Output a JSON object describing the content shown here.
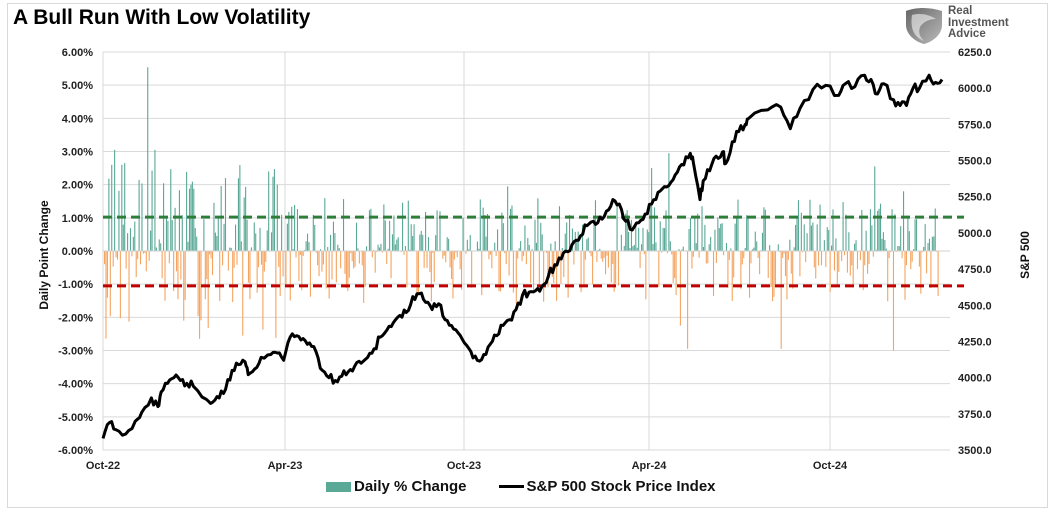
{
  "header": {
    "title": "A Bull Run With Low Volatility",
    "logo_lines": [
      "Real",
      "Investment",
      "Advice"
    ]
  },
  "colors": {
    "positive_bar": "#5aa896",
    "negative_bar": "#f4a460",
    "upper_avg_line": "#2e7d3a",
    "lower_avg_line": "#c00000",
    "price_line": "#000000",
    "grid": "#d9d9d9"
  },
  "chart_data": {
    "type": "bar+line",
    "title": "A Bull Run With Low Volatility",
    "xlabel": "",
    "ylabel_left": "Daily Point Change",
    "ylabel_right": "S&P 500",
    "x_ticks": [
      "Oct-22",
      "Apr-23",
      "Oct-23",
      "Apr-24",
      "Oct-24"
    ],
    "x_range": [
      "2022-10",
      "2025-01"
    ],
    "y_left_ticks": [
      "6.00%",
      "5.00%",
      "4.00%",
      "3.00%",
      "2.00%",
      "1.00%",
      "0.00%",
      "-1.00%",
      "-2.00%",
      "-3.00%",
      "-4.00%",
      "-5.00%",
      "-6.00%"
    ],
    "y_left_range": [
      -6,
      6
    ],
    "y_right_ticks": [
      "6250.0",
      "6000.0",
      "5750.0",
      "5500.0",
      "5250.0",
      "5000.0",
      "4750.0",
      "4500.0",
      "4250.0",
      "4000.0",
      "3750.0",
      "3500.0"
    ],
    "y_right_range": [
      3500,
      6250
    ],
    "grid": true,
    "legend_position": "bottom",
    "legend": [
      "Daily % Change",
      "S&P 500 Stock Price Index"
    ],
    "reference_lines": [
      {
        "name": "avg-positive-change",
        "value": 1.02,
        "axis": "left",
        "style": "dashed"
      },
      {
        "name": "avg-negative-change",
        "value": -1.05,
        "axis": "left",
        "style": "dashed"
      }
    ],
    "series": [
      {
        "name": "S&P 500 Stock Price Index",
        "axis": "right",
        "type": "line",
        "points": [
          [
            0,
            3580
          ],
          [
            0.01,
            3690
          ],
          [
            0.02,
            3640
          ],
          [
            0.035,
            3610
          ],
          [
            0.05,
            3700
          ],
          [
            0.06,
            3760
          ],
          [
            0.075,
            3860
          ],
          [
            0.085,
            3800
          ],
          [
            0.09,
            3900
          ],
          [
            0.1,
            3960
          ],
          [
            0.11,
            4000
          ],
          [
            0.12,
            3980
          ],
          [
            0.13,
            3960
          ],
          [
            0.14,
            3940
          ],
          [
            0.16,
            3850
          ],
          [
            0.17,
            3830
          ],
          [
            0.18,
            3860
          ],
          [
            0.19,
            3920
          ],
          [
            0.2,
            4050
          ],
          [
            0.21,
            4090
          ],
          [
            0.22,
            4110
          ],
          [
            0.225,
            4020
          ],
          [
            0.235,
            4060
          ],
          [
            0.245,
            4140
          ],
          [
            0.26,
            4160
          ],
          [
            0.27,
            4170
          ],
          [
            0.28,
            4120
          ],
          [
            0.29,
            4280
          ],
          [
            0.3,
            4290
          ],
          [
            0.31,
            4270
          ],
          [
            0.32,
            4240
          ],
          [
            0.33,
            4180
          ],
          [
            0.34,
            4050
          ],
          [
            0.35,
            4000
          ],
          [
            0.36,
            3980
          ],
          [
            0.37,
            4010
          ],
          [
            0.38,
            4040
          ],
          [
            0.39,
            4080
          ],
          [
            0.4,
            4100
          ],
          [
            0.41,
            4140
          ],
          [
            0.42,
            4200
          ],
          [
            0.43,
            4280
          ],
          [
            0.44,
            4330
          ],
          [
            0.45,
            4380
          ],
          [
            0.46,
            4430
          ],
          [
            0.47,
            4450
          ],
          [
            0.48,
            4560
          ],
          [
            0.49,
            4580
          ],
          [
            0.5,
            4520
          ],
          [
            0.51,
            4470
          ],
          [
            0.52,
            4510
          ],
          [
            0.53,
            4400
          ],
          [
            0.54,
            4360
          ],
          [
            0.55,
            4310
          ],
          [
            0.56,
            4240
          ],
          [
            0.57,
            4180
          ],
          [
            0.58,
            4120
          ],
          [
            0.59,
            4160
          ],
          [
            0.6,
            4230
          ],
          [
            0.61,
            4290
          ],
          [
            0.62,
            4360
          ],
          [
            0.63,
            4400
          ],
          [
            0.64,
            4470
          ],
          [
            0.65,
            4570
          ],
          [
            0.66,
            4590
          ],
          [
            0.67,
            4600
          ],
          [
            0.68,
            4630
          ],
          [
            0.69,
            4700
          ],
          [
            0.7,
            4780
          ],
          [
            0.71,
            4820
          ],
          [
            0.72,
            4870
          ],
          [
            0.73,
            4940
          ],
          [
            0.74,
            4980
          ],
          [
            0.75,
            5050
          ],
          [
            0.76,
            5080
          ],
          [
            0.77,
            5110
          ],
          [
            0.78,
            5150
          ],
          [
            0.79,
            5230
          ],
          [
            0.8,
            5200
          ],
          [
            0.81,
            5080
          ],
          [
            0.82,
            5020
          ],
          [
            0.83,
            5070
          ],
          [
            0.84,
            5130
          ],
          [
            0.85,
            5200
          ],
          [
            0.86,
            5280
          ],
          [
            0.87,
            5320
          ],
          [
            0.88,
            5350
          ],
          [
            0.89,
            5420
          ],
          [
            0.9,
            5470
          ],
          [
            0.91,
            5550
          ],
          [
            0.915,
            5480
          ],
          [
            0.925,
            5230
          ],
          [
            0.93,
            5360
          ],
          [
            0.94,
            5430
          ],
          [
            0.95,
            5530
          ],
          [
            0.96,
            5560
          ],
          [
            0.965,
            5480
          ],
          [
            0.975,
            5630
          ],
          [
            0.985,
            5700
          ],
          [
            0.995,
            5750
          ],
          [
            1.0,
            5790
          ]
        ],
        "note": "Normalized x position (0=start, 1=~Nov-24 region) shown approximately; full daily series continues to ~6080 by Jan-25"
      },
      {
        "name": "Daily % Change",
        "axis": "left",
        "type": "bar",
        "notable_values": {
          "max_positive": 5.54,
          "max_negative": -3.0
        }
      }
    ]
  }
}
